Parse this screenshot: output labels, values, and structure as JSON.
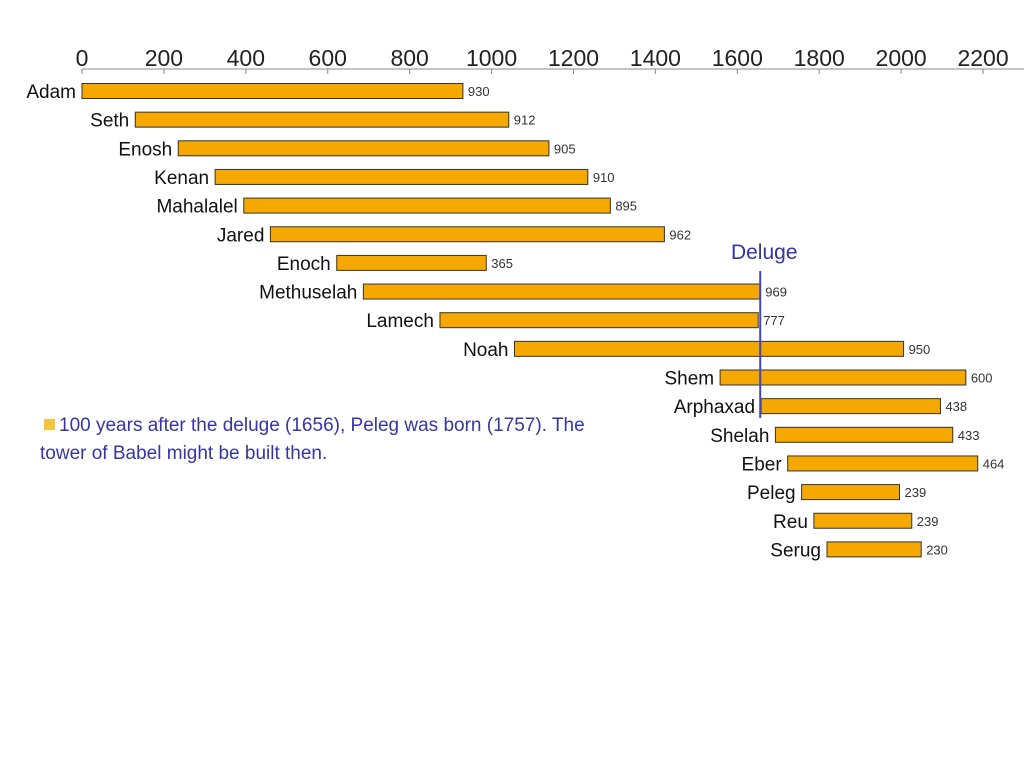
{
  "chart_data": {
    "type": "bar",
    "orientation": "horizontal",
    "x_axis": {
      "ticks": [
        0,
        200,
        400,
        600,
        800,
        1000,
        1200,
        1400,
        1600,
        1800,
        2000,
        2200
      ],
      "range": [
        0,
        2300
      ],
      "position": "top"
    },
    "bar_color": "#f5a800",
    "bar_stroke": "#333333",
    "series": [
      {
        "name": "Adam",
        "start": 0,
        "value": 930
      },
      {
        "name": "Seth",
        "start": 130,
        "value": 912
      },
      {
        "name": "Enosh",
        "start": 235,
        "value": 905
      },
      {
        "name": "Kenan",
        "start": 325,
        "value": 910
      },
      {
        "name": "Mahalalel",
        "start": 395,
        "value": 895
      },
      {
        "name": "Jared",
        "start": 460,
        "value": 962
      },
      {
        "name": "Enoch",
        "start": 622,
        "value": 365
      },
      {
        "name": "Methuselah",
        "start": 687,
        "value": 969
      },
      {
        "name": "Lamech",
        "start": 874,
        "value": 777
      },
      {
        "name": "Noah",
        "start": 1056,
        "value": 950
      },
      {
        "name": "Shem",
        "start": 1558,
        "value": 600
      },
      {
        "name": "Arphaxad",
        "start": 1658,
        "value": 438
      },
      {
        "name": "Shelah",
        "start": 1693,
        "value": 433
      },
      {
        "name": "Eber",
        "start": 1723,
        "value": 464
      },
      {
        "name": "Peleg",
        "start": 1757,
        "value": 239
      },
      {
        "name": "Reu",
        "start": 1787,
        "value": 239
      },
      {
        "name": "Serug",
        "start": 1819,
        "value": 230
      }
    ],
    "annotations": [
      {
        "text": "Deluge",
        "x": 1656,
        "color": "#3333aa"
      }
    ]
  },
  "note": {
    "bullet_color": "#f5c542",
    "text": "100 years after the deluge (1656), Peleg was born (1757). The tower of Babel might be built then."
  }
}
